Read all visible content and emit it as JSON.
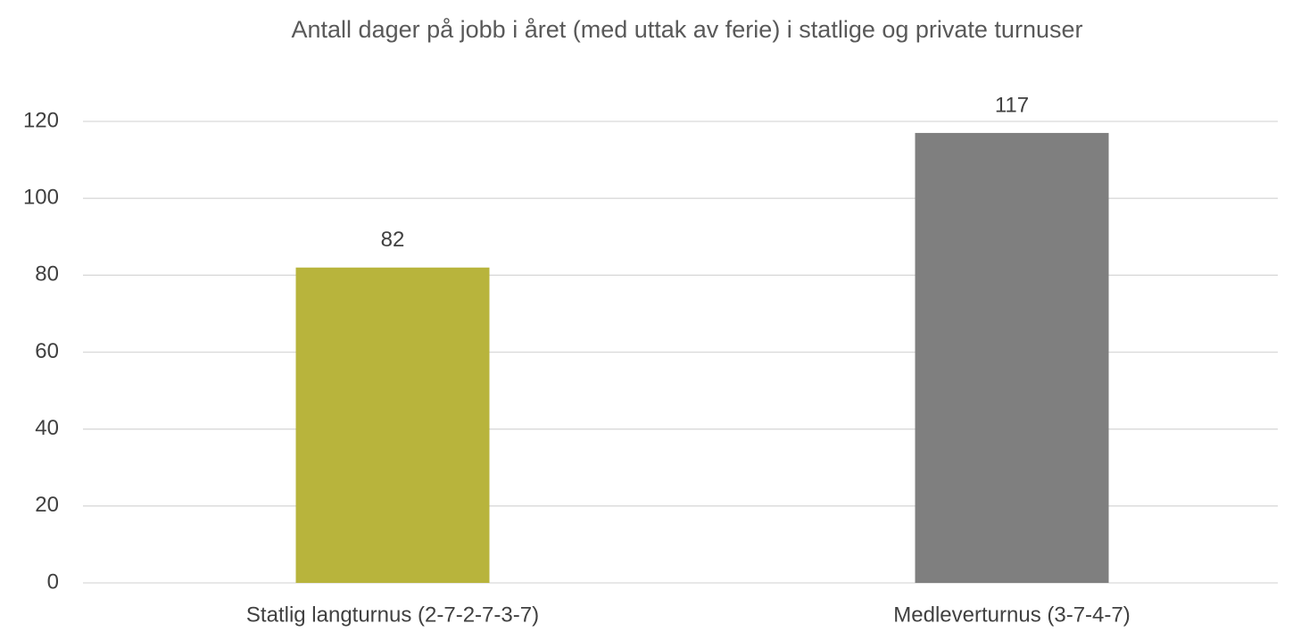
{
  "chart_data": {
    "type": "bar",
    "title": "Antall dager på jobb i året (med uttak av ferie) i statlige og private turnuser",
    "categories": [
      "Statlig langturnus (2-7-2-7-3-7)",
      "Medleverturnus (3-7-4-7)"
    ],
    "values": [
      82,
      117
    ],
    "colors": [
      "#b8b43c",
      "#7f7f7f"
    ],
    "ylim": [
      0,
      120
    ],
    "yticks": [
      0,
      20,
      40,
      60,
      80,
      100,
      120
    ],
    "grid": true
  }
}
